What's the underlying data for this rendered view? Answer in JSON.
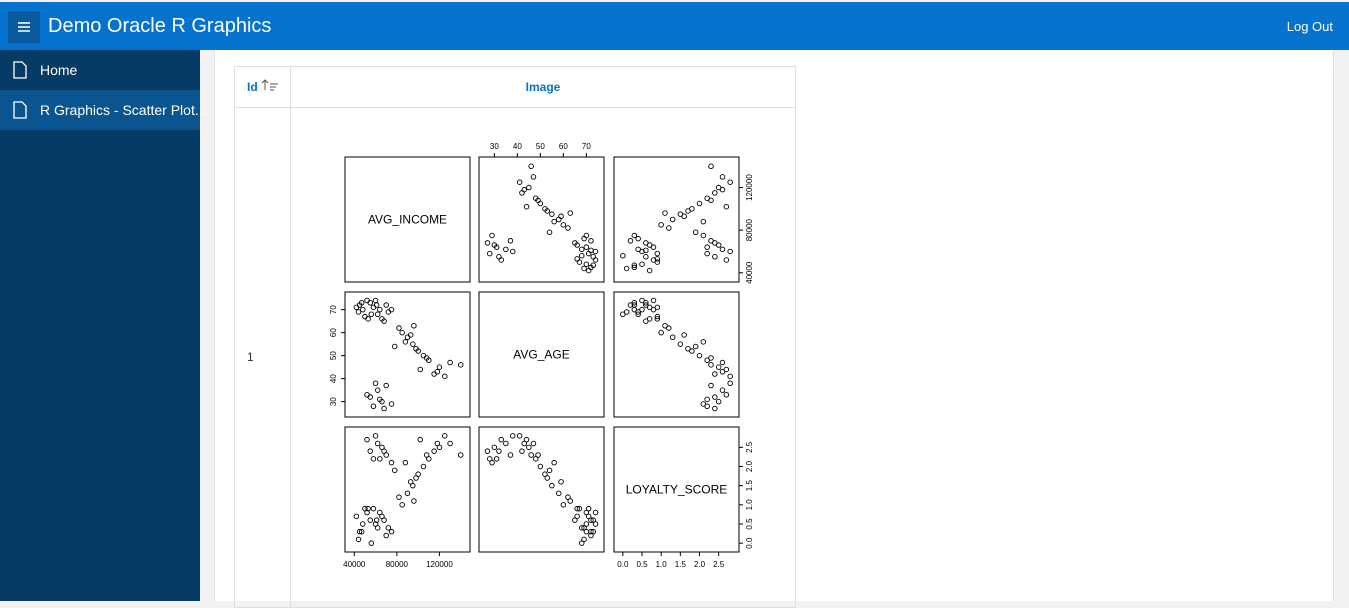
{
  "header": {
    "title": "Demo Oracle R Graphics",
    "logout": "Log Out"
  },
  "nav": {
    "items": [
      "Home",
      "R Graphics - Scatter Plot..."
    ]
  },
  "table": {
    "headers": [
      "Id",
      "Image"
    ],
    "rows": [
      {
        "id": "1"
      }
    ]
  },
  "chart_data": {
    "type": "scatter-matrix",
    "variables": [
      {
        "name": "AVG_INCOME",
        "lim": [
          36000,
          144000
        ],
        "ticks": [
          40000,
          80000,
          120000
        ],
        "values": [
          45000,
          48000,
          52000,
          55000,
          58000,
          62000,
          66000,
          70000,
          44000,
          50000,
          60000,
          64000,
          47000,
          68000,
          56000,
          42000,
          72000,
          53000,
          61000,
          75000,
          85000,
          95000,
          100000,
          110000,
          120000,
          130000,
          140000,
          90000,
          105000,
          115000,
          82000,
          98000,
          125000,
          88000,
          102000,
          93000,
          108000,
          78000,
          118000,
          96000,
          55000,
          58000,
          62000,
          66000,
          70000,
          52000,
          75000,
          60000,
          68000,
          64000
        ]
      },
      {
        "name": "AVG_AGE",
        "lim": [
          25.5,
          75.5
        ],
        "ticks": [
          30,
          40,
          50,
          60,
          70
        ],
        "values": [
          72,
          70,
          74,
          73,
          71,
          68,
          66,
          72,
          69,
          67,
          74,
          70,
          73,
          65,
          68,
          71,
          69,
          66,
          72,
          70,
          60,
          55,
          52,
          48,
          45,
          47,
          46,
          58,
          50,
          42,
          62,
          53,
          41,
          56,
          44,
          59,
          49,
          54,
          43,
          63,
          32,
          28,
          35,
          30,
          37,
          33,
          29,
          38,
          27,
          31
        ]
      },
      {
        "name": "LOYALTY_SCORE",
        "lim": [
          -0.1,
          2.9
        ],
        "ticks": [
          {
            "value": 0,
            "label": "0.0"
          },
          {
            "value": 0.5,
            "label": "0.5"
          },
          {
            "value": 1,
            "label": "1.0"
          },
          {
            "value": 1.5,
            "label": "1.5"
          },
          {
            "value": 2,
            "label": "2.0"
          },
          {
            "value": 2.5,
            "label": "2.5"
          }
        ],
        "values": [
          0.3,
          0.5,
          0.8,
          0.6,
          0.9,
          0.4,
          0.7,
          0.2,
          0.1,
          0.9,
          0.5,
          0.8,
          0.3,
          0.6,
          0.0,
          0.7,
          0.4,
          0.9,
          0.6,
          0.3,
          1.0,
          1.5,
          1.8,
          2.2,
          2.5,
          2.6,
          2.3,
          1.3,
          2.0,
          2.4,
          1.2,
          1.7,
          2.8,
          2.1,
          2.7,
          1.6,
          2.3,
          1.9,
          2.6,
          1.1,
          2.4,
          2.2,
          2.6,
          2.5,
          2.3,
          2.7,
          2.1,
          2.8,
          2.4,
          2.2
        ]
      }
    ]
  }
}
